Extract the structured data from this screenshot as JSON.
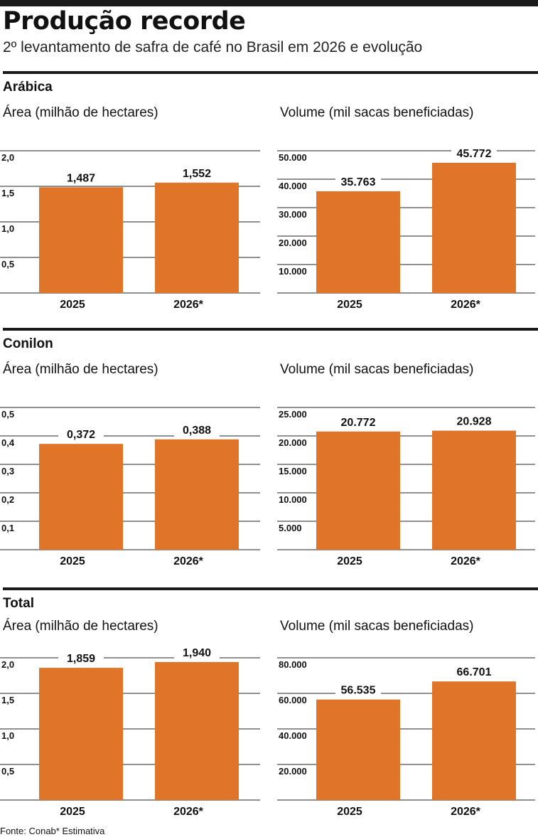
{
  "title": "Produção recorde",
  "subtitle": "2º levantamento de safra de café no Brasil em 2026 e evolução",
  "sections": [
    {
      "name": "Arábica",
      "charts": [
        {
          "title": "Área  (milhão de hectares)"
        },
        {
          "title": "Volume (mil sacas beneficiadas)"
        }
      ]
    },
    {
      "name": "Conilon",
      "charts": [
        {
          "title": "Área  (milhão de hectares)"
        },
        {
          "title": "Volume (mil sacas beneficiadas)"
        }
      ]
    },
    {
      "name": "Total",
      "charts": [
        {
          "title": "Área  (milhão de hectares)"
        },
        {
          "title": "Volume (mil sacas beneficiadas)"
        }
      ]
    }
  ],
  "source": "Fonte: Conab* Estimativa",
  "colors": {
    "bar": "#e07428",
    "gridline": "#222222",
    "rule": "#1a1a1a"
  },
  "chart_data": [
    {
      "type": "bar",
      "categories": [
        "2025",
        "2026*"
      ],
      "values": [
        1.487,
        1.552
      ],
      "value_labels": [
        "1,487",
        "1,552"
      ],
      "ylim": [
        0,
        2.0
      ],
      "yticks": [
        0.5,
        1.0,
        1.5,
        2.0
      ],
      "ytick_labels": [
        "0,5",
        "1,0",
        "1,5",
        "2,0"
      ],
      "grid": true
    },
    {
      "type": "bar",
      "categories": [
        "2025",
        "2026*"
      ],
      "values": [
        35763,
        45772
      ],
      "value_labels": [
        "35.763",
        "45.772"
      ],
      "ylim": [
        0,
        50000
      ],
      "yticks": [
        10000,
        20000,
        30000,
        40000,
        50000
      ],
      "ytick_labels": [
        "10.000",
        "20.000",
        "30.000",
        "40.000",
        "50.000"
      ],
      "grid": true
    },
    {
      "type": "bar",
      "categories": [
        "2025",
        "2026*"
      ],
      "values": [
        0.372,
        0.388
      ],
      "value_labels": [
        "0,372",
        "0,388"
      ],
      "ylim": [
        0,
        0.5
      ],
      "yticks": [
        0.1,
        0.2,
        0.3,
        0.4,
        0.5
      ],
      "ytick_labels": [
        "0,1",
        "0,2",
        "0,3",
        "0,4",
        "0,5"
      ],
      "grid": true
    },
    {
      "type": "bar",
      "categories": [
        "2025",
        "2026*"
      ],
      "values": [
        20772,
        20928
      ],
      "value_labels": [
        "20.772",
        "20.928"
      ],
      "ylim": [
        0,
        25000
      ],
      "yticks": [
        5000,
        10000,
        15000,
        20000,
        25000
      ],
      "ytick_labels": [
        "5.000",
        "10.000",
        "15.000",
        "20.000",
        "25.000"
      ],
      "grid": true
    },
    {
      "type": "bar",
      "categories": [
        "2025",
        "2026*"
      ],
      "values": [
        1.859,
        1.94
      ],
      "value_labels": [
        "1,859",
        "1,940"
      ],
      "ylim": [
        0,
        2.0
      ],
      "yticks": [
        0.5,
        1.0,
        1.5,
        2.0
      ],
      "ytick_labels": [
        "0,5",
        "1,0",
        "1,5",
        "2,0"
      ],
      "grid": true
    },
    {
      "type": "bar",
      "categories": [
        "2025",
        "2026*"
      ],
      "values": [
        56535,
        66701
      ],
      "value_labels": [
        "56.535",
        "66.701"
      ],
      "ylim": [
        0,
        80000
      ],
      "yticks": [
        20000,
        40000,
        60000,
        80000
      ],
      "ytick_labels": [
        "20.000",
        "40.000",
        "60.000",
        "80.000"
      ],
      "grid": true
    }
  ]
}
